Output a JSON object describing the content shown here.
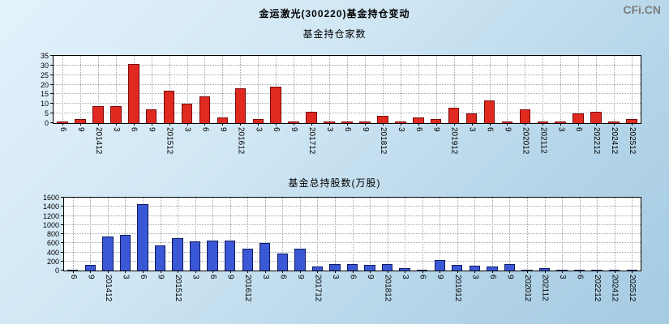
{
  "header": {
    "title": "金运激光(300220)基金持仓变动",
    "watermark": "CFi.CN"
  },
  "chart_data": [
    {
      "type": "bar",
      "title": "基金持仓家数",
      "bar_color": "#e02a20",
      "bar_border": "#7a0a0a",
      "grid": true,
      "legend": "none",
      "ylim": [
        0,
        35
      ],
      "ytick_step": 5,
      "categories": [
        "6",
        "9",
        "201412",
        "3",
        "6",
        "9",
        "201512",
        "3",
        "6",
        "9",
        "201612",
        "3",
        "6",
        "9",
        "201712",
        "3",
        "6",
        "9",
        "201812",
        "3",
        "6",
        "9",
        "201912",
        "3",
        "6",
        "9",
        "202012",
        "202112",
        "3",
        "6",
        "202212",
        "202412",
        "202512"
      ],
      "values": [
        1,
        2,
        9,
        9,
        31,
        7,
        17,
        10,
        14,
        3,
        18,
        2,
        19,
        1,
        6,
        1,
        1,
        1,
        4,
        1,
        3,
        2,
        8,
        5,
        12,
        1,
        7,
        1,
        1,
        5,
        6,
        1,
        2
      ]
    },
    {
      "type": "bar",
      "title": "基金总持股数(万股)",
      "bar_color": "#3a57d6",
      "bar_border": "#101a60",
      "grid": true,
      "legend": "none",
      "ylim": [
        0,
        1600
      ],
      "ytick_step": 200,
      "categories": [
        "6",
        "9",
        "201412",
        "3",
        "6",
        "9",
        "201512",
        "3",
        "6",
        "9",
        "201612",
        "3",
        "6",
        "9",
        "201712",
        "3",
        "6",
        "9",
        "201812",
        "3",
        "6",
        "9",
        "201912",
        "3",
        "6",
        "9",
        "202012",
        "202112",
        "3",
        "6",
        "202212",
        "202412",
        "202512"
      ],
      "values": [
        10,
        130,
        750,
        780,
        1450,
        550,
        720,
        640,
        660,
        660,
        480,
        600,
        380,
        480,
        90,
        150,
        140,
        130,
        150,
        60,
        20,
        230,
        120,
        100,
        90,
        150,
        20,
        60,
        20,
        15,
        10,
        10,
        5
      ]
    }
  ]
}
